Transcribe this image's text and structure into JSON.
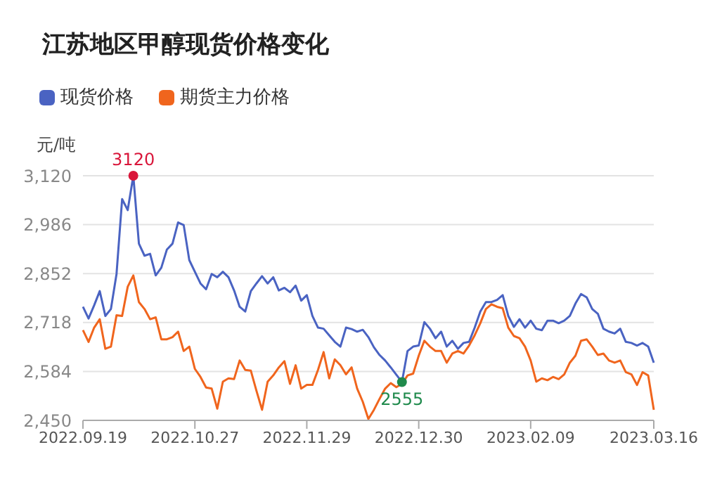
{
  "chart_data": {
    "type": "line",
    "title": "江苏地区甲醇现货价格变化",
    "ylabel": "元/吨",
    "categories": [
      "2022.09.19",
      null,
      null,
      null,
      null,
      null,
      null,
      null,
      null,
      null,
      null,
      null,
      null,
      null,
      null,
      null,
      null,
      null,
      null,
      null,
      "2022.10.27",
      null,
      null,
      null,
      null,
      null,
      null,
      null,
      null,
      null,
      null,
      null,
      null,
      null,
      null,
      null,
      null,
      null,
      null,
      null,
      "2022.11.29",
      null,
      null,
      null,
      null,
      null,
      null,
      null,
      null,
      null,
      null,
      null,
      null,
      null,
      null,
      null,
      null,
      null,
      null,
      null,
      "2022.12.30",
      null,
      null,
      null,
      null,
      null,
      null,
      null,
      null,
      null,
      null,
      null,
      null,
      null,
      null,
      null,
      null,
      null,
      null,
      null,
      "2023.02.09",
      null,
      null,
      null,
      null,
      null,
      null,
      null,
      null,
      null,
      null,
      null,
      null,
      null,
      null,
      null,
      null,
      null,
      null,
      null,
      null,
      null,
      "2023.03.16"
    ],
    "series": [
      {
        "name": "现货价格",
        "color": "#4a63c2",
        "values": [
          2761,
          2729,
          2765,
          2804,
          2736,
          2755,
          2851,
          3056,
          3026,
          3120,
          2934,
          2901,
          2906,
          2847,
          2868,
          2918,
          2934,
          2992,
          2985,
          2889,
          2857,
          2825,
          2809,
          2851,
          2842,
          2857,
          2842,
          2806,
          2761,
          2748,
          2804,
          2825,
          2845,
          2825,
          2842,
          2806,
          2813,
          2801,
          2819,
          2778,
          2793,
          2736,
          2704,
          2701,
          2683,
          2665,
          2652,
          2704,
          2700,
          2693,
          2698,
          2678,
          2650,
          2629,
          2614,
          2595,
          2575,
          2555,
          2640,
          2652,
          2655,
          2719,
          2701,
          2675,
          2693,
          2652,
          2668,
          2646,
          2662,
          2665,
          2704,
          2748,
          2774,
          2774,
          2780,
          2793,
          2736,
          2706,
          2727,
          2704,
          2723,
          2701,
          2697,
          2723,
          2723,
          2716,
          2723,
          2736,
          2770,
          2796,
          2787,
          2755,
          2742,
          2701,
          2693,
          2688,
          2701,
          2665,
          2662,
          2655,
          2662,
          2652,
          2608
        ],
        "value_labels": [
          null,
          null,
          null,
          null,
          null,
          null,
          null,
          null,
          null,
          "3120",
          null,
          null,
          null,
          null,
          null,
          null,
          null,
          null,
          null,
          null,
          null,
          null,
          null,
          null,
          null,
          null,
          null,
          null,
          null,
          null,
          null,
          null,
          null,
          null,
          null,
          null,
          null,
          null,
          null,
          null,
          null,
          null,
          null,
          null,
          null,
          null,
          null,
          null,
          null,
          null,
          null,
          null,
          null,
          null,
          null,
          null,
          null,
          "2555",
          null,
          null,
          null,
          null,
          null,
          null,
          null,
          null,
          null,
          null,
          null,
          null,
          null,
          null,
          null,
          null,
          null,
          null,
          null,
          null,
          null,
          null,
          null,
          null,
          null,
          null,
          null,
          null,
          null,
          null,
          null,
          null,
          null,
          null,
          null,
          null,
          null,
          null,
          null,
          null,
          null,
          null,
          null,
          null,
          null
        ]
      },
      {
        "name": "期货主力价格",
        "color": "#f0651d",
        "values": [
          2697,
          2665,
          2704,
          2727,
          2646,
          2652,
          2738,
          2736,
          2816,
          2847,
          2774,
          2755,
          2727,
          2732,
          2672,
          2672,
          2678,
          2693,
          2640,
          2652,
          2591,
          2569,
          2540,
          2537,
          2482,
          2556,
          2565,
          2563,
          2614,
          2588,
          2586,
          2531,
          2479,
          2556,
          2573,
          2595,
          2612,
          2550,
          2601,
          2537,
          2547,
          2547,
          2588,
          2637,
          2565,
          2617,
          2601,
          2576,
          2595,
          2537,
          2501,
          2454,
          2479,
          2509,
          2537,
          2552,
          2541,
          2550,
          2573,
          2578,
          2627,
          2668,
          2652,
          2640,
          2640,
          2608,
          2633,
          2640,
          2633,
          2655,
          2683,
          2716,
          2755,
          2768,
          2761,
          2757,
          2704,
          2681,
          2675,
          2652,
          2614,
          2556,
          2565,
          2560,
          2569,
          2563,
          2576,
          2608,
          2627,
          2668,
          2672,
          2652,
          2629,
          2633,
          2614,
          2608,
          2614,
          2582,
          2576,
          2547,
          2582,
          2573,
          2479
        ]
      }
    ],
    "ylim": [
      2450,
      3120
    ],
    "yticks": [
      {
        "value": 2450,
        "label": "2,450"
      },
      {
        "value": 2584,
        "label": "2,584"
      },
      {
        "value": 2718,
        "label": "2,718"
      },
      {
        "value": 2852,
        "label": "2,852"
      },
      {
        "value": 2986,
        "label": "2,986"
      },
      {
        "value": 3120,
        "label": "3,120"
      }
    ],
    "grid": "y",
    "legend": "top left",
    "marker": "none",
    "line_style": "solid"
  }
}
